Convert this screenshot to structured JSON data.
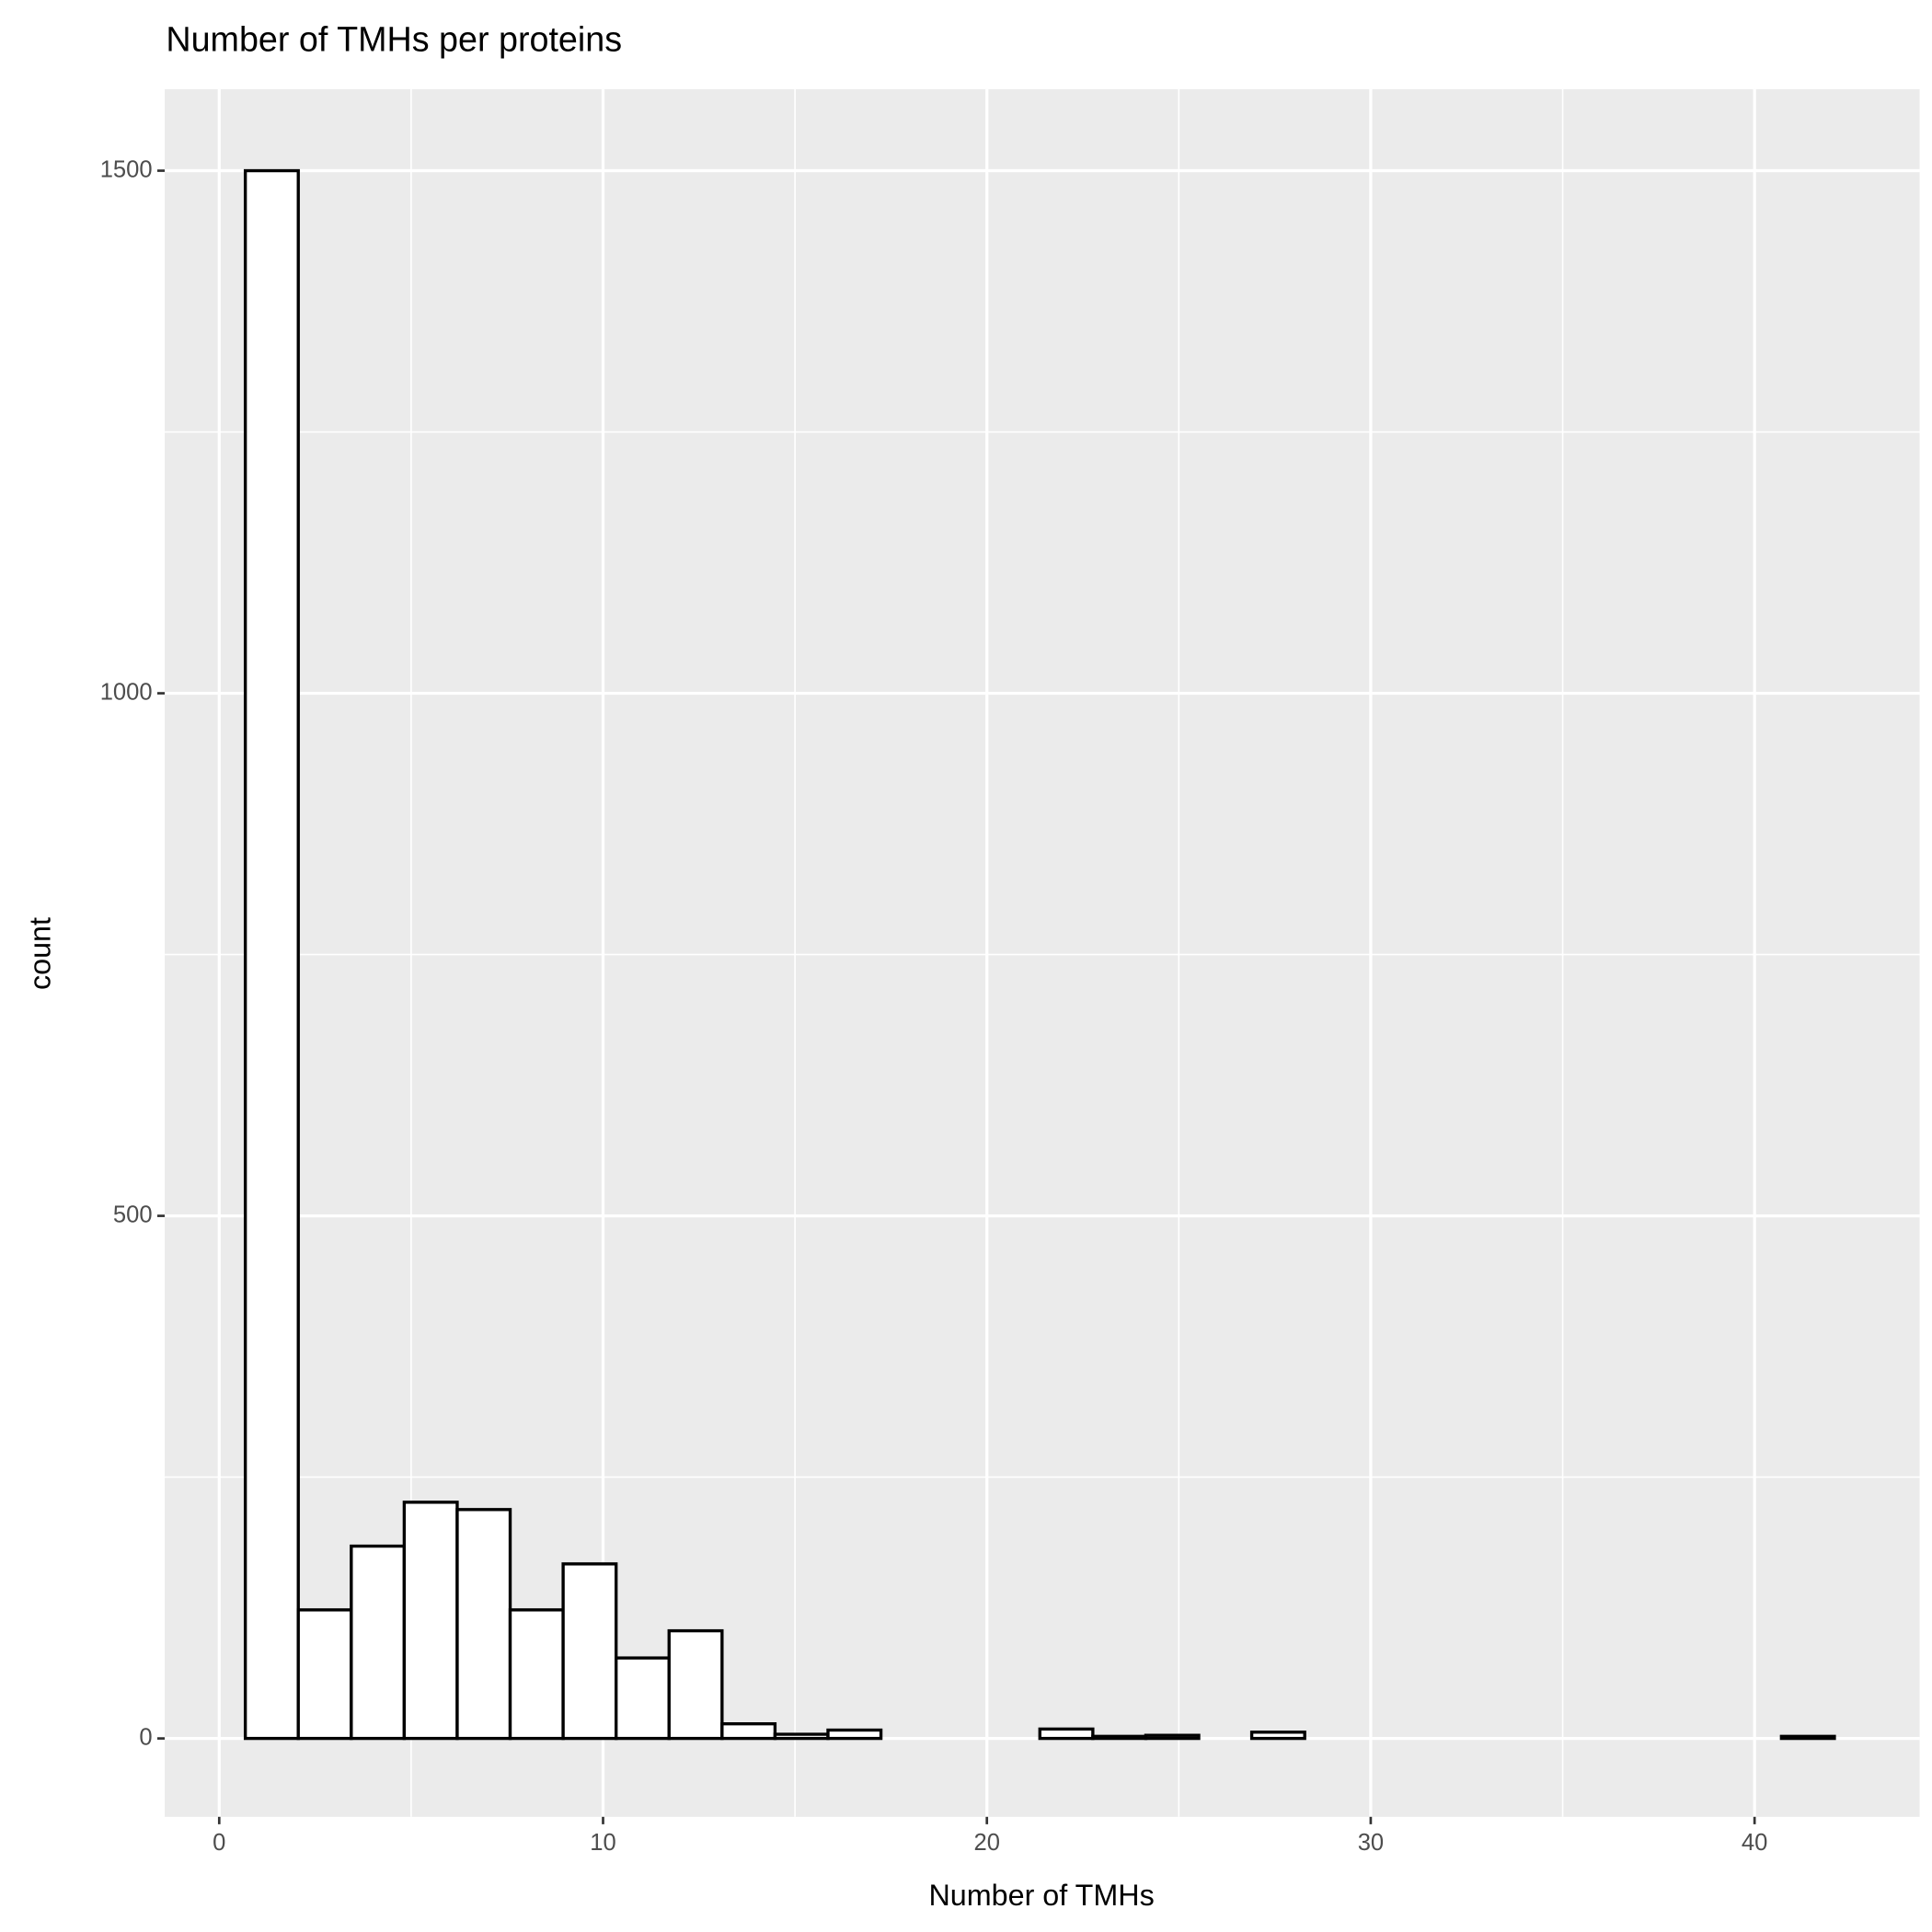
{
  "chart_data": {
    "type": "histogram",
    "title": "Number of TMHs per proteins",
    "x_label": "Number of TMHs",
    "y_label": "count",
    "bins": [
      0.68,
      2.06,
      3.44,
      4.82,
      6.2,
      7.58,
      8.96,
      10.34,
      11.72,
      13.1,
      14.48,
      15.86,
      17.24,
      18.62,
      20.0,
      21.38,
      22.76,
      24.14,
      25.52,
      26.9,
      28.28,
      29.66,
      31.04,
      32.42,
      33.8,
      35.18,
      36.56,
      37.94,
      39.32,
      40.7,
      42.08
    ],
    "counts": [
      1500,
      123,
      184,
      226,
      219,
      123,
      167,
      77,
      103,
      14,
      4,
      8,
      0,
      0,
      0,
      9,
      2,
      3,
      0,
      6,
      0,
      0,
      0,
      0,
      0,
      0,
      0,
      0,
      0,
      2
    ],
    "fill": "#ffffff",
    "edge_color": "#000000",
    "xlim": [
      -1.42,
      44.3
    ],
    "ylim": [
      -75,
      1578
    ],
    "xticks": [
      0,
      10,
      20,
      30,
      40
    ],
    "yticks": [
      0,
      500,
      1000,
      1500
    ],
    "minor_xticks": [
      5,
      15,
      25,
      35
    ],
    "minor_yticks": [
      250,
      750,
      1250
    ],
    "grid": true,
    "panel_color": "#ebebeb"
  }
}
